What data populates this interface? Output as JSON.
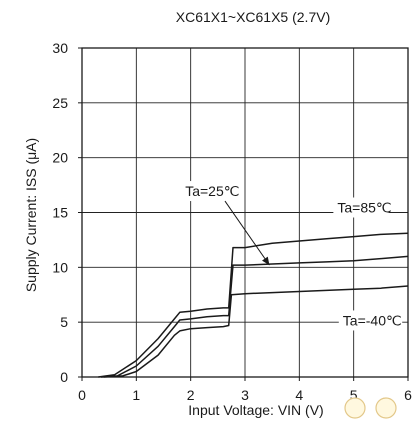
{
  "chart_data": {
    "type": "line",
    "title": "XC61X1~XC61X5 (2.7V)",
    "xlabel": "Input Voltage:  VIN (V)",
    "ylabel": "Supply Current:  ISS (μA)",
    "xlim": [
      0,
      6
    ],
    "ylim": [
      0,
      30
    ],
    "x_ticks": [
      "0",
      "1",
      "2",
      "3",
      "4",
      "5",
      "6"
    ],
    "y_ticks": [
      "0",
      "5",
      "10",
      "15",
      "20",
      "25",
      "30"
    ],
    "grid": true,
    "series": [
      {
        "name": "Ta=85℃",
        "points": [
          [
            0.3,
            0
          ],
          [
            0.6,
            0.2
          ],
          [
            1.0,
            1.5
          ],
          [
            1.4,
            3.5
          ],
          [
            1.7,
            5.3
          ],
          [
            1.8,
            5.9
          ],
          [
            2.0,
            6.0
          ],
          [
            2.3,
            6.2
          ],
          [
            2.6,
            6.3
          ],
          [
            2.7,
            6.3
          ],
          [
            2.78,
            11.8
          ],
          [
            3.0,
            11.8
          ],
          [
            3.5,
            12.2
          ],
          [
            4.0,
            12.4
          ],
          [
            4.5,
            12.6
          ],
          [
            5.0,
            12.8
          ],
          [
            5.5,
            13.0
          ],
          [
            6.0,
            13.1
          ]
        ]
      },
      {
        "name": "Ta=25℃",
        "points": [
          [
            0.35,
            0
          ],
          [
            0.65,
            0.1
          ],
          [
            1.0,
            1.0
          ],
          [
            1.4,
            2.8
          ],
          [
            1.7,
            4.6
          ],
          [
            1.8,
            5.2
          ],
          [
            2.0,
            5.3
          ],
          [
            2.3,
            5.5
          ],
          [
            2.6,
            5.6
          ],
          [
            2.7,
            5.6
          ],
          [
            2.78,
            10.2
          ],
          [
            3.0,
            10.2
          ],
          [
            3.5,
            10.3
          ],
          [
            4.0,
            10.4
          ],
          [
            4.5,
            10.5
          ],
          [
            5.0,
            10.6
          ],
          [
            5.5,
            10.8
          ],
          [
            6.0,
            11.0
          ]
        ]
      },
      {
        "name": "Ta=-40℃",
        "points": [
          [
            0.4,
            0
          ],
          [
            0.75,
            0.1
          ],
          [
            1.0,
            0.5
          ],
          [
            1.4,
            2.0
          ],
          [
            1.7,
            3.8
          ],
          [
            1.8,
            4.2
          ],
          [
            2.0,
            4.4
          ],
          [
            2.3,
            4.5
          ],
          [
            2.6,
            4.6
          ],
          [
            2.7,
            4.7
          ],
          [
            2.75,
            7.5
          ],
          [
            3.0,
            7.6
          ],
          [
            3.5,
            7.7
          ],
          [
            4.0,
            7.8
          ],
          [
            4.5,
            7.9
          ],
          [
            5.0,
            8.0
          ],
          [
            5.5,
            8.1
          ],
          [
            6.0,
            8.3
          ]
        ]
      }
    ],
    "annotations": [
      {
        "text": "Ta=25℃",
        "x": 1.9,
        "y": 16.5,
        "arrow_to": [
          3.45,
          10.2
        ]
      },
      {
        "text": "Ta=85℃",
        "x": 4.7,
        "y": 15.0
      },
      {
        "text": "Ta=-40℃",
        "x": 4.8,
        "y": 4.7
      }
    ]
  }
}
